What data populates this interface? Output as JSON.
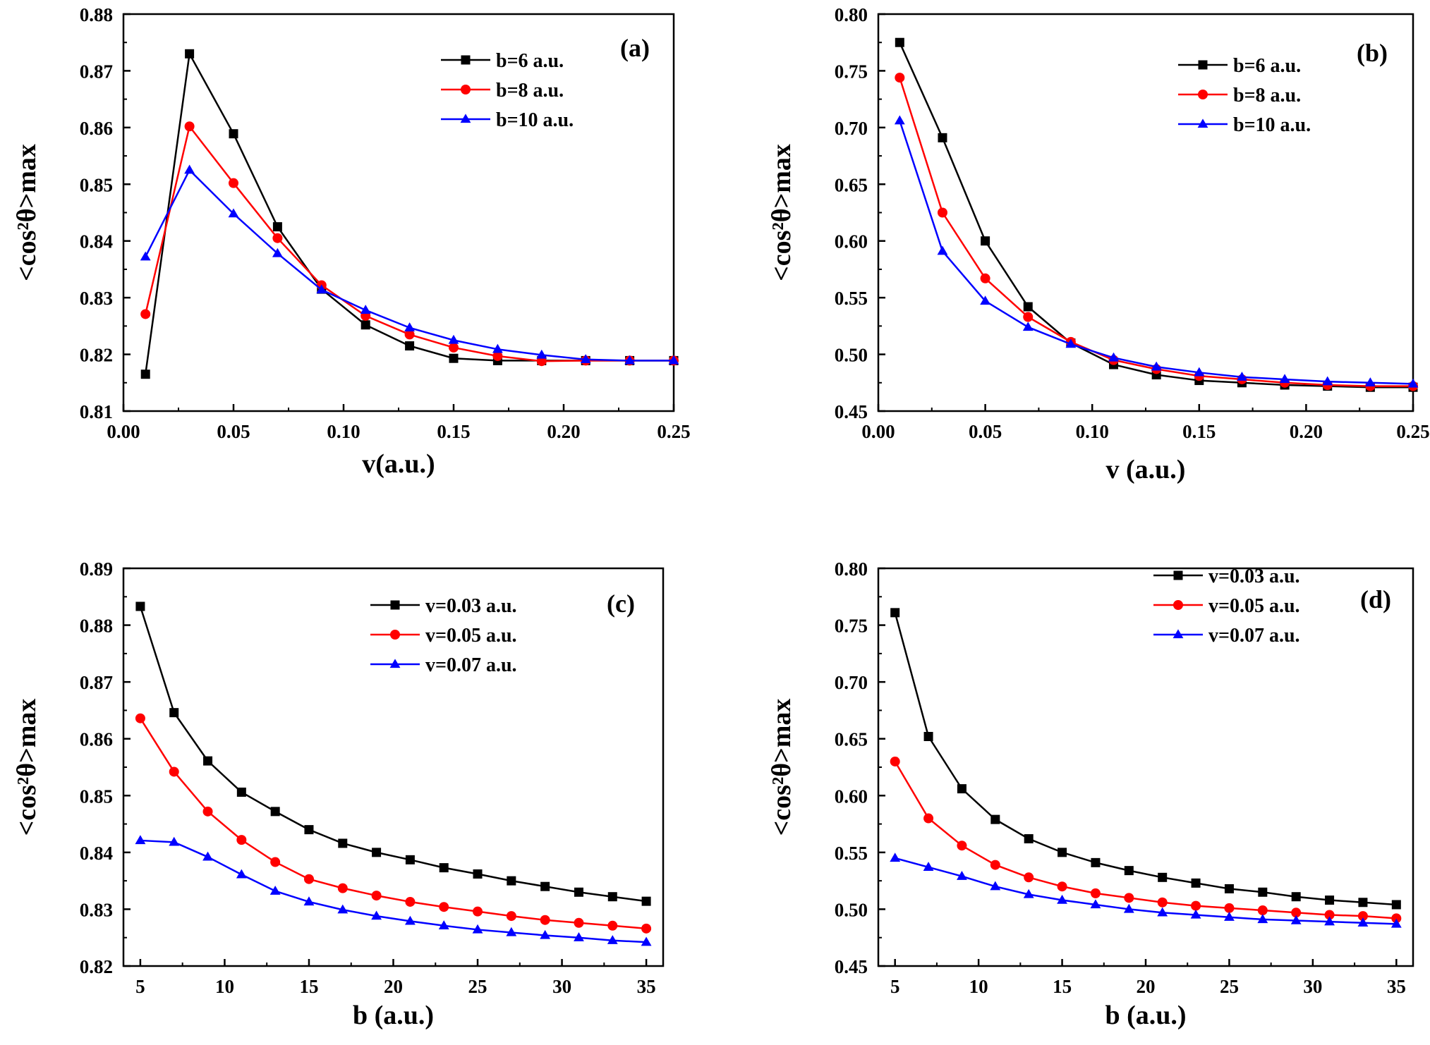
{
  "colors": {
    "black": "#000000",
    "red": "#ff0000",
    "blue": "#0000ff"
  },
  "chart_data": [
    {
      "type": "line",
      "panel_label": "(a)",
      "xlabel": "v(a.u.)",
      "ylabel": "<cos²θ>max",
      "xlim": [
        0.0,
        0.25
      ],
      "ylim": [
        0.81,
        0.88
      ],
      "x_ticks": [
        "0.00",
        "0.05",
        "0.10",
        "0.15",
        "0.20",
        "0.25"
      ],
      "y_ticks": [
        "0.81",
        "0.82",
        "0.83",
        "0.84",
        "0.85",
        "0.86",
        "0.87",
        "0.88"
      ],
      "legend_position": "top-right",
      "x": [
        0.01,
        0.03,
        0.05,
        0.07,
        0.09,
        0.11,
        0.13,
        0.15,
        0.17,
        0.19,
        0.21,
        0.23,
        0.25
      ],
      "series": [
        {
          "name": "b=6 a.u.",
          "color": "#000000",
          "marker": "square",
          "values": [
            0.8165,
            0.873,
            0.8589,
            0.8425,
            0.8315,
            0.8252,
            0.8215,
            0.8193,
            0.8189,
            0.8189,
            0.8189,
            0.8189,
            0.8189
          ]
        },
        {
          "name": "b=8 a.u.",
          "color": "#ff0000",
          "marker": "circle",
          "values": [
            0.8271,
            0.8602,
            0.8502,
            0.8405,
            0.8322,
            0.8268,
            0.8235,
            0.8212,
            0.8197,
            0.8188,
            0.8189,
            0.8189,
            0.8189
          ]
        },
        {
          "name": "b=10 a.u.",
          "color": "#0000ff",
          "marker": "triangle",
          "values": [
            0.8372,
            0.8525,
            0.8448,
            0.8378,
            0.8314,
            0.8278,
            0.8247,
            0.8225,
            0.8209,
            0.8199,
            0.8191,
            0.8189,
            0.8189
          ]
        }
      ]
    },
    {
      "type": "line",
      "panel_label": "(b)",
      "xlabel": "v (a.u.)",
      "ylabel": "<cos²θ>max",
      "xlim": [
        0.0,
        0.25
      ],
      "ylim": [
        0.45,
        0.8
      ],
      "x_ticks": [
        "0.00",
        "0.05",
        "0.10",
        "0.15",
        "0.20",
        "0.25"
      ],
      "y_ticks": [
        "0.45",
        "0.50",
        "0.55",
        "0.60",
        "0.65",
        "0.70",
        "0.75",
        "0.80"
      ],
      "legend_position": "top-right",
      "x": [
        0.01,
        0.03,
        0.05,
        0.07,
        0.09,
        0.11,
        0.13,
        0.15,
        0.17,
        0.19,
        0.21,
        0.23,
        0.25
      ],
      "series": [
        {
          "name": "b=6 a.u.",
          "color": "#000000",
          "marker": "square",
          "values": [
            0.775,
            0.691,
            0.6,
            0.542,
            0.51,
            0.491,
            0.482,
            0.477,
            0.475,
            0.473,
            0.472,
            0.471,
            0.471
          ]
        },
        {
          "name": "b=8 a.u.",
          "color": "#ff0000",
          "marker": "circle",
          "values": [
            0.744,
            0.625,
            0.567,
            0.533,
            0.511,
            0.495,
            0.487,
            0.481,
            0.478,
            0.475,
            0.473,
            0.472,
            0.472
          ]
        },
        {
          "name": "b=10 a.u.",
          "color": "#0000ff",
          "marker": "triangle",
          "values": [
            0.706,
            0.591,
            0.547,
            0.524,
            0.509,
            0.497,
            0.489,
            0.484,
            0.48,
            0.478,
            0.476,
            0.475,
            0.474
          ]
        }
      ]
    },
    {
      "type": "line",
      "panel_label": "(c)",
      "xlabel": "b (a.u.)",
      "ylabel": "<cos²θ>max",
      "xlim": [
        4,
        36
      ],
      "ylim": [
        0.82,
        0.89
      ],
      "x_ticks": [
        "5",
        "10",
        "15",
        "20",
        "25",
        "30",
        "35"
      ],
      "y_ticks": [
        "0.82",
        "0.83",
        "0.84",
        "0.85",
        "0.86",
        "0.87",
        "0.88",
        "0.89"
      ],
      "legend_position": "top-right",
      "x": [
        5,
        7,
        9,
        11,
        13,
        15,
        17,
        19,
        21,
        23,
        25,
        27,
        29,
        31,
        33,
        35
      ],
      "series": [
        {
          "name": "v=0.03 a.u.",
          "color": "#000000",
          "marker": "square",
          "values": [
            0.8833,
            0.8646,
            0.8561,
            0.8506,
            0.8472,
            0.844,
            0.8416,
            0.84,
            0.8387,
            0.8373,
            0.8362,
            0.835,
            0.834,
            0.833,
            0.8322,
            0.8314
          ]
        },
        {
          "name": "v=0.05 a.u.",
          "color": "#ff0000",
          "marker": "circle",
          "values": [
            0.8636,
            0.8542,
            0.8472,
            0.8422,
            0.8383,
            0.8353,
            0.8337,
            0.8324,
            0.8313,
            0.8304,
            0.8296,
            0.8288,
            0.8281,
            0.8276,
            0.8271,
            0.8266
          ]
        },
        {
          "name": "v=0.07 a.u.",
          "color": "#0000ff",
          "marker": "triangle",
          "values": [
            0.8421,
            0.8418,
            0.8392,
            0.8361,
            0.8332,
            0.8313,
            0.8299,
            0.8288,
            0.8279,
            0.8271,
            0.8264,
            0.8259,
            0.8254,
            0.825,
            0.8245,
            0.8242
          ]
        }
      ]
    },
    {
      "type": "line",
      "panel_label": "(d)",
      "xlabel": "b (a.u.)",
      "ylabel": "<cos²θ>max",
      "xlim": [
        4,
        36
      ],
      "ylim": [
        0.45,
        0.8
      ],
      "x_ticks": [
        "5",
        "10",
        "15",
        "20",
        "25",
        "30",
        "35"
      ],
      "y_ticks": [
        "0.45",
        "0.50",
        "0.55",
        "0.60",
        "0.65",
        "0.70",
        "0.75",
        "0.80"
      ],
      "legend_position": "top-right",
      "x": [
        5,
        7,
        9,
        11,
        13,
        15,
        17,
        19,
        21,
        23,
        25,
        27,
        29,
        31,
        33,
        35
      ],
      "series": [
        {
          "name": "v=0.03 a.u.",
          "color": "#000000",
          "marker": "square",
          "values": [
            0.761,
            0.652,
            0.606,
            0.579,
            0.562,
            0.55,
            0.541,
            0.534,
            0.528,
            0.523,
            0.518,
            0.515,
            0.511,
            0.508,
            0.506,
            0.504
          ]
        },
        {
          "name": "v=0.05 a.u.",
          "color": "#ff0000",
          "marker": "circle",
          "values": [
            0.63,
            0.58,
            0.556,
            0.539,
            0.528,
            0.52,
            0.514,
            0.51,
            0.506,
            0.503,
            0.501,
            0.499,
            0.497,
            0.495,
            0.494,
            0.492
          ]
        },
        {
          "name": "v=0.07 a.u.",
          "color": "#0000ff",
          "marker": "triangle",
          "values": [
            0.545,
            0.537,
            0.529,
            0.52,
            0.513,
            0.508,
            0.504,
            0.5,
            0.497,
            0.495,
            0.493,
            0.491,
            0.49,
            0.489,
            0.488,
            0.487
          ]
        }
      ]
    }
  ]
}
